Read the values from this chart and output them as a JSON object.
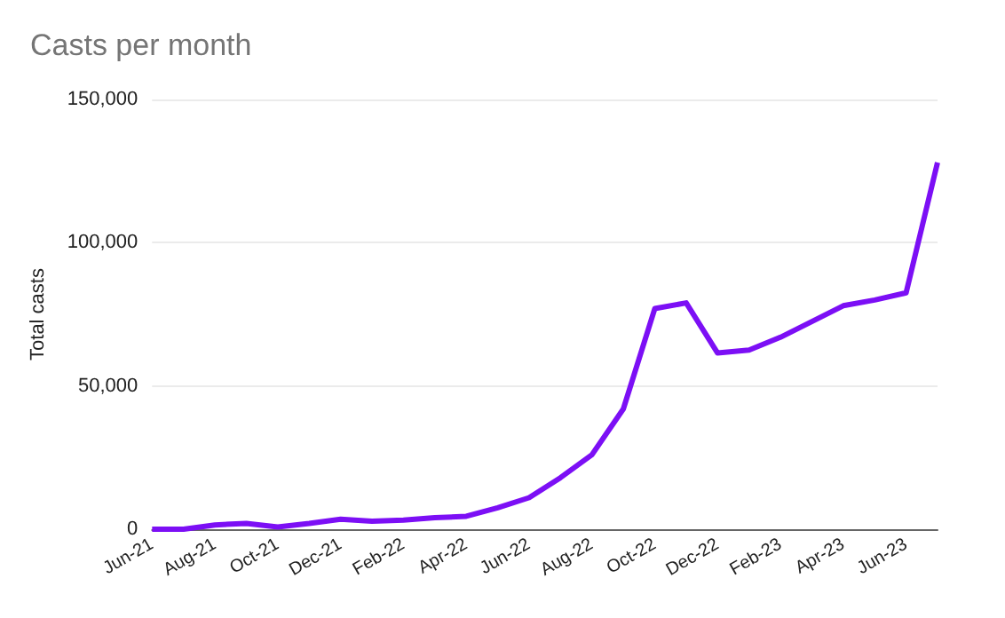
{
  "chart_data": {
    "type": "line",
    "title": "Casts per month",
    "ylabel": "Total casts",
    "categories": [
      "Jun-21",
      null,
      "Aug-21",
      null,
      "Oct-21",
      null,
      "Dec-21",
      null,
      "Feb-22",
      null,
      "Apr-22",
      null,
      "Jun-22",
      null,
      "Aug-22",
      null,
      "Oct-22",
      null,
      "Dec-22",
      null,
      "Feb-23",
      null,
      "Apr-23",
      null,
      "Jun-23",
      null
    ],
    "series": [
      {
        "color": "#7c0ff5",
        "values": [
          0,
          0,
          1500,
          2000,
          800,
          2000,
          3500,
          2800,
          3200,
          4000,
          4500,
          7500,
          11000,
          18000,
          26000,
          42000,
          77000,
          79000,
          61500,
          62500,
          67000,
          72500,
          78000,
          80000,
          82500,
          128000
        ]
      }
    ],
    "ylim": [
      0,
      150000
    ],
    "yticks": [
      0,
      {
        "value": 50000,
        "label": "50,000"
      },
      {
        "value": 100000,
        "label": "100,000"
      },
      {
        "value": 150000,
        "label": "150,000"
      }
    ],
    "grid": "y",
    "marker": "none",
    "line_style": "solid"
  }
}
